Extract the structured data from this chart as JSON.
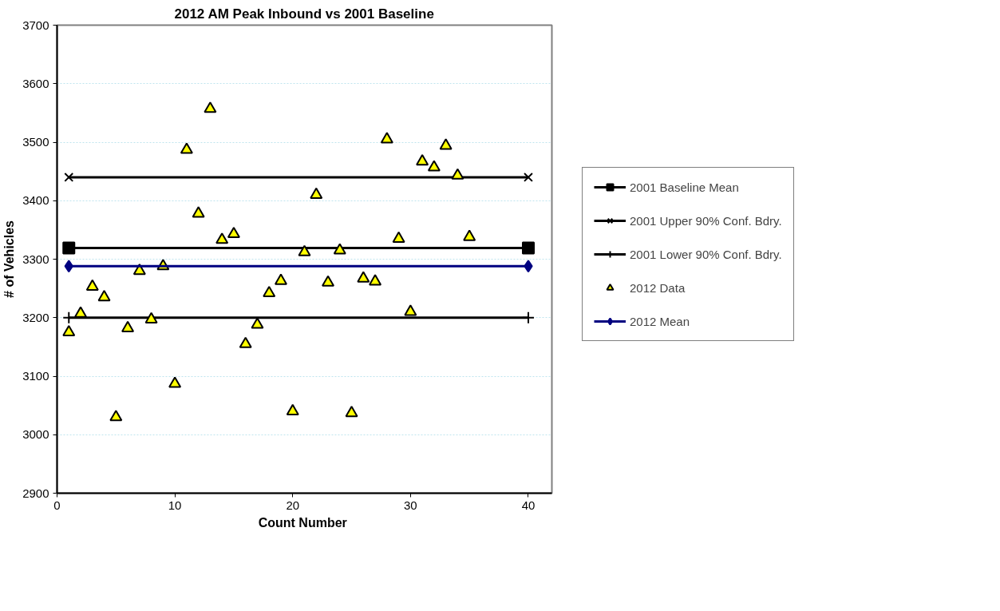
{
  "chart_data": {
    "type": "scatter",
    "title": "2012 AM Peak Inbound vs 2001 Baseline",
    "xlabel": "Count  Number",
    "ylabel": "# of Vehicles",
    "series": [
      {
        "name": "2001 Baseline Mean",
        "type": "line",
        "marker": "square",
        "color": "#000000",
        "x": [
          1,
          40
        ],
        "values": [
          3319,
          3319
        ]
      },
      {
        "name": "2001 Upper 90% Conf. Bdry.",
        "type": "line",
        "marker": "x",
        "color": "#000000",
        "x": [
          1,
          40
        ],
        "values": [
          3440,
          3440
        ]
      },
      {
        "name": "2001 Lower 90% Conf. Bdry.",
        "type": "line",
        "marker": "cross",
        "color": "#000000",
        "x": [
          1,
          40
        ],
        "values": [
          3200,
          3200
        ]
      },
      {
        "name": "2012 Data",
        "type": "scatter",
        "marker": "triangle",
        "color": "#ffff00",
        "x": [
          1,
          2,
          3,
          4,
          5,
          6,
          7,
          8,
          9,
          10,
          11,
          12,
          13,
          14,
          15,
          16,
          17,
          18,
          19,
          20,
          21,
          22,
          23,
          24,
          25,
          26,
          27,
          28,
          29,
          30,
          31,
          32,
          33,
          34,
          35
        ],
        "values": [
          3175,
          3207,
          3253,
          3235,
          3030,
          3182,
          3280,
          3197,
          3288,
          3087,
          3487,
          3378,
          3557,
          3333,
          3343,
          3155,
          3188,
          3242,
          3263,
          3040,
          3312,
          3410,
          3260,
          3315,
          3037,
          3267,
          3262,
          3505,
          3335,
          3210,
          3467,
          3457,
          3494,
          3443,
          3338
        ]
      },
      {
        "name": "2012 Mean",
        "type": "line",
        "marker": "diamond",
        "color": "#000080",
        "x": [
          1,
          40
        ],
        "values": [
          3288,
          3288
        ]
      }
    ],
    "xlim": [
      0,
      42
    ],
    "ylim": [
      2900,
      3700
    ],
    "xticks": [
      0,
      10,
      20,
      30,
      40
    ],
    "yticks": [
      2900,
      3000,
      3100,
      3200,
      3300,
      3400,
      3500,
      3600,
      3700
    ],
    "grid": "y",
    "legend": "right"
  }
}
